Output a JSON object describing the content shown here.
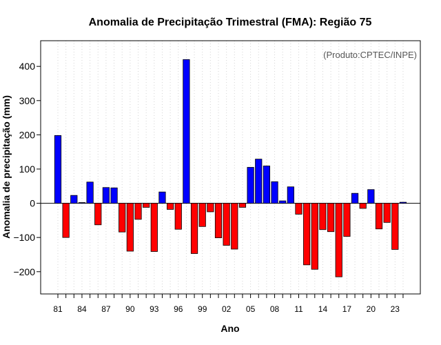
{
  "chart_data": {
    "type": "bar",
    "title": "Anomalia de Precipitação Trimestral (FMA): Região 75",
    "xlabel": "Ano",
    "ylabel": "Anomalia de precipitação (mm)",
    "annotation": "(Produto:CPTEC/INPE)",
    "ylim": [
      -265,
      475
    ],
    "yticks": [
      -200,
      -100,
      0,
      100,
      200,
      300,
      400
    ],
    "xtick_labels": [
      "81",
      "84",
      "87",
      "90",
      "93",
      "96",
      "99",
      "02",
      "05",
      "08",
      "11",
      "14",
      "17",
      "20",
      "23"
    ],
    "grid": true,
    "positive_color": "#0000ff",
    "negative_color": "#ff0000",
    "categories": [
      "1981",
      "1982",
      "1983",
      "1984",
      "1985",
      "1986",
      "1987",
      "1988",
      "1989",
      "1990",
      "1991",
      "1992",
      "1993",
      "1994",
      "1995",
      "1996",
      "1997",
      "1998",
      "1999",
      "2000",
      "2001",
      "2002",
      "2003",
      "2004",
      "2005",
      "2006",
      "2007",
      "2008",
      "2009",
      "2010",
      "2011",
      "2012",
      "2013",
      "2014",
      "2015",
      "2016",
      "2017",
      "2018",
      "2019",
      "2020",
      "2021",
      "2022",
      "2023",
      "2024"
    ],
    "values": [
      198,
      -100,
      23,
      2,
      62,
      -63,
      46,
      45,
      -84,
      -140,
      -47,
      -12,
      -141,
      33,
      -18,
      -76,
      420,
      -147,
      -68,
      -25,
      -101,
      -123,
      -134,
      -12,
      105,
      129,
      109,
      63,
      7,
      48,
      -32,
      -180,
      -193,
      -77,
      -83,
      -215,
      -97,
      29,
      -15,
      40,
      -75,
      -56,
      -135,
      3
    ]
  }
}
